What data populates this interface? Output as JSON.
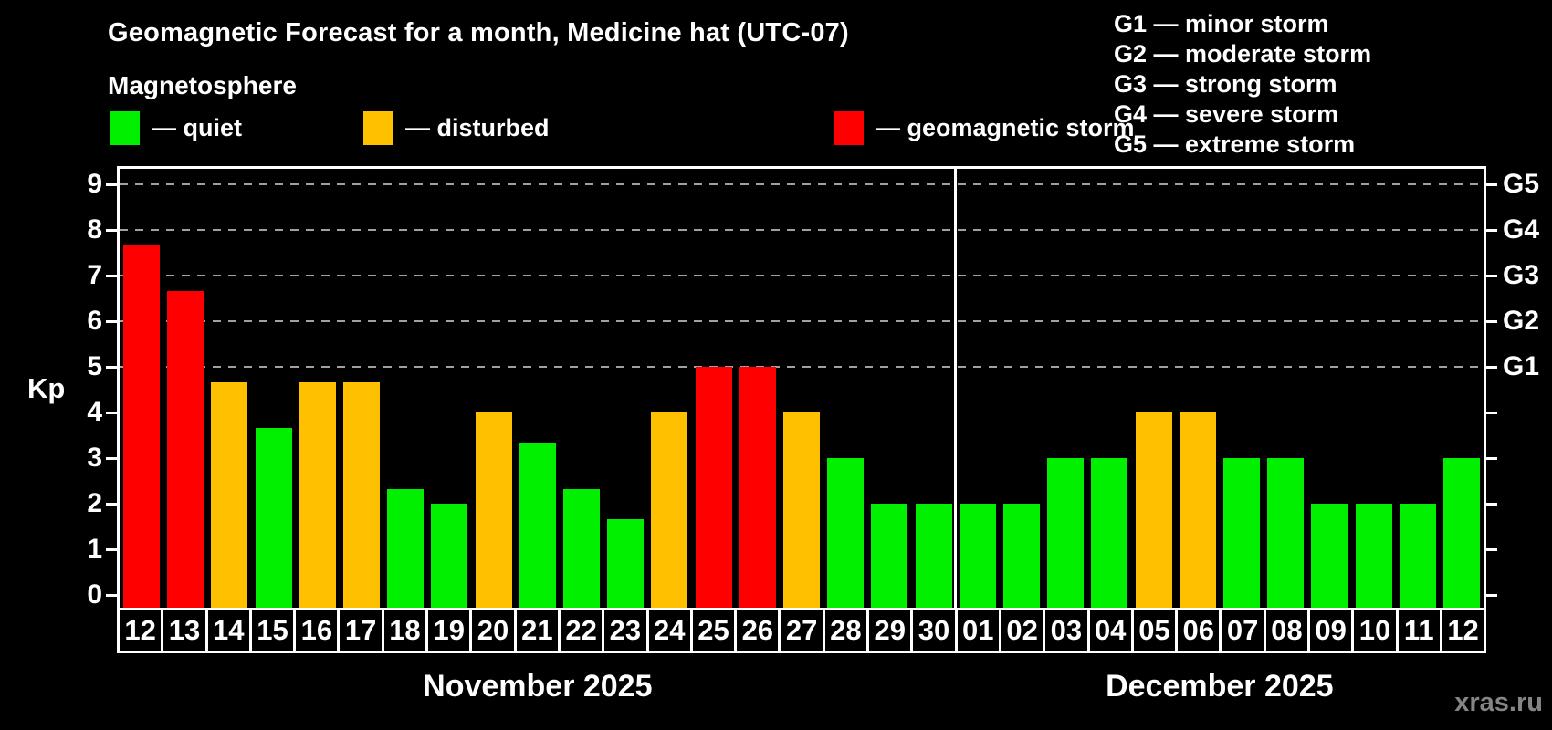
{
  "header": {
    "title": "Geomagnetic Forecast for a month, Medicine hat (UTC-07)",
    "subtitle": "Magnetosphere"
  },
  "legend": {
    "items": [
      {
        "id": "quiet",
        "label": "— quiet",
        "color": "#00F000"
      },
      {
        "id": "disturbed",
        "label": "— disturbed",
        "color": "#FFC000"
      },
      {
        "id": "storm",
        "label": "— geomagnetic storm",
        "color": "#FF0000"
      }
    ]
  },
  "g_scale_legend": {
    "lines": [
      "G1 — minor storm",
      "G2 — moderate storm",
      "G3 — strong storm",
      "G4 — severe storm",
      "G5 — extreme storm"
    ]
  },
  "watermark": "xras.ru",
  "colors": {
    "background": "#000000",
    "axis": "#FFFFFF",
    "grid": "#A0A0A0",
    "quiet": "#00F000",
    "disturbed": "#FFC000",
    "storm": "#FF0000",
    "watermark": "#858585"
  },
  "chart_data": {
    "type": "bar",
    "title": "Geomagnetic Forecast for a month, Medicine hat (UTC-07)",
    "ylabel": "Kp",
    "ylim": [
      0,
      9.34
    ],
    "y_ticks": [
      0,
      1,
      2,
      3,
      4,
      5,
      6,
      7,
      8,
      9
    ],
    "gridlines_at_kp": [
      5,
      6,
      7,
      8,
      9
    ],
    "grid_style": "dashed horizontal, storm levels only",
    "right_axis_ticks": [
      {
        "kp": 5,
        "label": "G1"
      },
      {
        "kp": 6,
        "label": "G2"
      },
      {
        "kp": 7,
        "label": "G3"
      },
      {
        "kp": 8,
        "label": "G4"
      },
      {
        "kp": 9,
        "label": "G5"
      }
    ],
    "months": [
      {
        "label": "November 2025",
        "start_index": 0,
        "count": 19
      },
      {
        "label": "December 2025",
        "start_index": 19,
        "count": 12
      }
    ],
    "bars": [
      {
        "day": "12",
        "kp": 7.67,
        "status": "storm"
      },
      {
        "day": "13",
        "kp": 6.67,
        "status": "storm"
      },
      {
        "day": "14",
        "kp": 4.67,
        "status": "disturbed"
      },
      {
        "day": "15",
        "kp": 3.67,
        "status": "quiet"
      },
      {
        "day": "16",
        "kp": 4.67,
        "status": "disturbed"
      },
      {
        "day": "17",
        "kp": 4.67,
        "status": "disturbed"
      },
      {
        "day": "18",
        "kp": 2.33,
        "status": "quiet"
      },
      {
        "day": "19",
        "kp": 2.0,
        "status": "quiet"
      },
      {
        "day": "20",
        "kp": 4.0,
        "status": "disturbed"
      },
      {
        "day": "21",
        "kp": 3.33,
        "status": "quiet"
      },
      {
        "day": "22",
        "kp": 2.33,
        "status": "quiet"
      },
      {
        "day": "23",
        "kp": 1.67,
        "status": "quiet"
      },
      {
        "day": "24",
        "kp": 4.0,
        "status": "disturbed"
      },
      {
        "day": "25",
        "kp": 5.0,
        "status": "storm"
      },
      {
        "day": "26",
        "kp": 5.0,
        "status": "storm"
      },
      {
        "day": "27",
        "kp": 4.0,
        "status": "disturbed"
      },
      {
        "day": "28",
        "kp": 3.0,
        "status": "quiet"
      },
      {
        "day": "29",
        "kp": 2.0,
        "status": "quiet"
      },
      {
        "day": "30",
        "kp": 2.0,
        "status": "quiet"
      },
      {
        "day": "01",
        "kp": 2.0,
        "status": "quiet"
      },
      {
        "day": "02",
        "kp": 2.0,
        "status": "quiet"
      },
      {
        "day": "03",
        "kp": 3.0,
        "status": "quiet"
      },
      {
        "day": "04",
        "kp": 3.0,
        "status": "quiet"
      },
      {
        "day": "05",
        "kp": 4.0,
        "status": "disturbed"
      },
      {
        "day": "06",
        "kp": 4.0,
        "status": "disturbed"
      },
      {
        "day": "07",
        "kp": 3.0,
        "status": "quiet"
      },
      {
        "day": "08",
        "kp": 3.0,
        "status": "quiet"
      },
      {
        "day": "09",
        "kp": 2.0,
        "status": "quiet"
      },
      {
        "day": "10",
        "kp": 2.0,
        "status": "quiet"
      },
      {
        "day": "11",
        "kp": 2.0,
        "status": "quiet"
      },
      {
        "day": "12",
        "kp": 3.0,
        "status": "quiet"
      }
    ]
  }
}
